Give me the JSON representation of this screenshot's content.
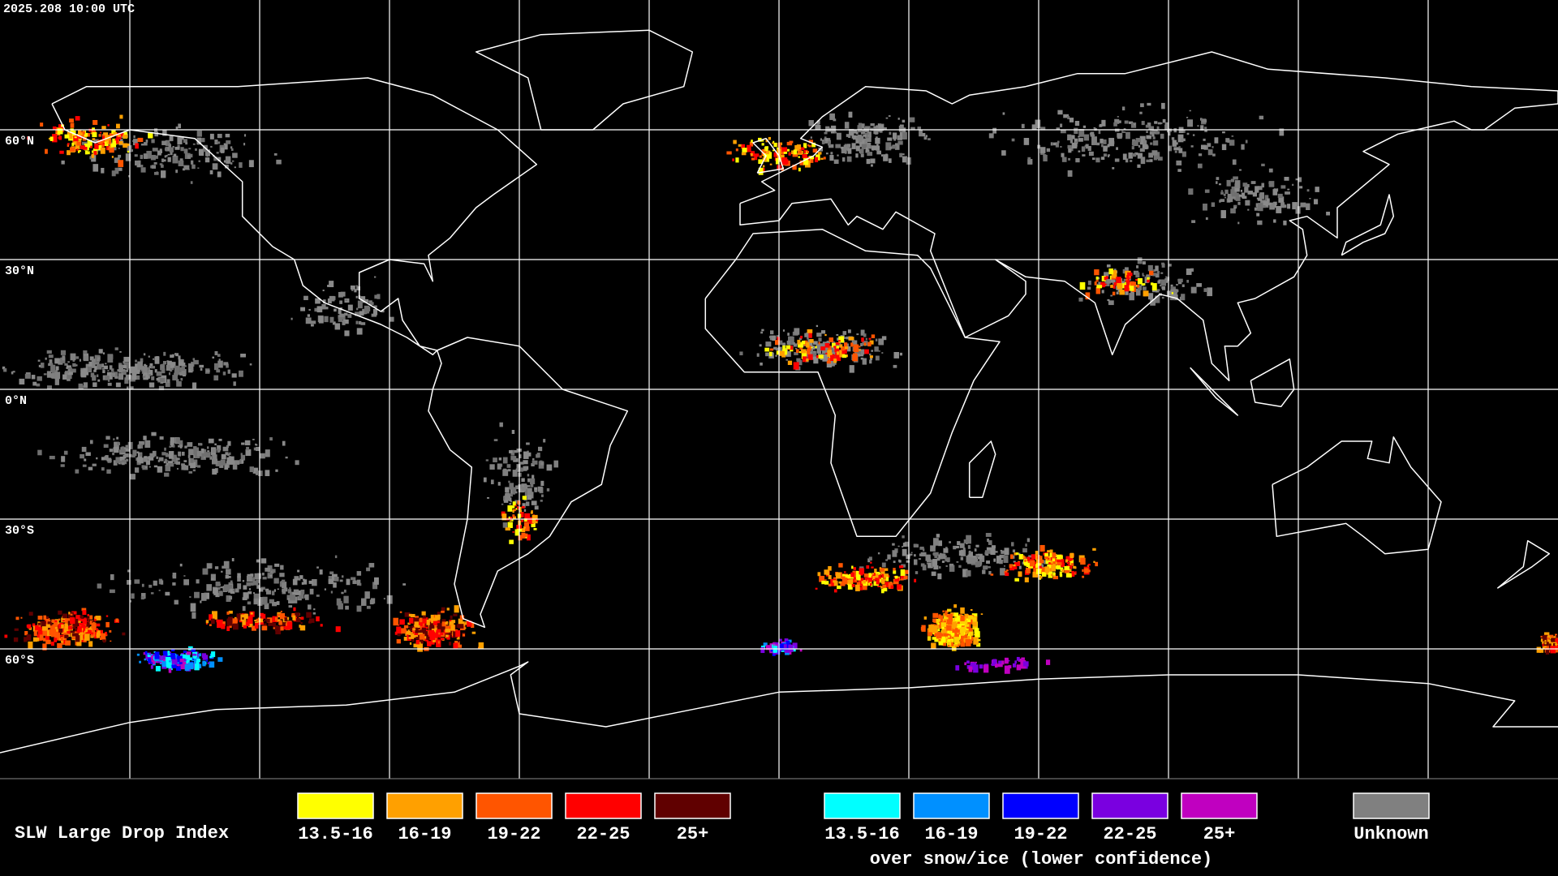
{
  "header": {
    "timestamp": "2025.208 10:00 UTC"
  },
  "map": {
    "lat_labels": [
      "60°N",
      "30°N",
      "0°N",
      "30°S",
      "60°S"
    ]
  },
  "legend": {
    "title": "SLW Large Drop Index",
    "groups": [
      {
        "items": [
          {
            "label": "13.5-16",
            "color": "#ffff00"
          },
          {
            "label": "16-19",
            "color": "#ffa000"
          },
          {
            "label": "19-22",
            "color": "#ff5500"
          },
          {
            "label": "22-25",
            "color": "#ff0000"
          },
          {
            "label": "25+",
            "color": "#600000"
          }
        ]
      },
      {
        "items": [
          {
            "label": "13.5-16",
            "color": "#00ffff"
          },
          {
            "label": "16-19",
            "color": "#0090ff"
          },
          {
            "label": "19-22",
            "color": "#0000ff"
          },
          {
            "label": "22-25",
            "color": "#7a00e0"
          },
          {
            "label": "25+",
            "color": "#c000c0"
          }
        ],
        "caption": "over snow/ice (lower confidence)"
      },
      {
        "items": [
          {
            "label": "Unknown",
            "color": "#808080"
          }
        ]
      }
    ]
  }
}
